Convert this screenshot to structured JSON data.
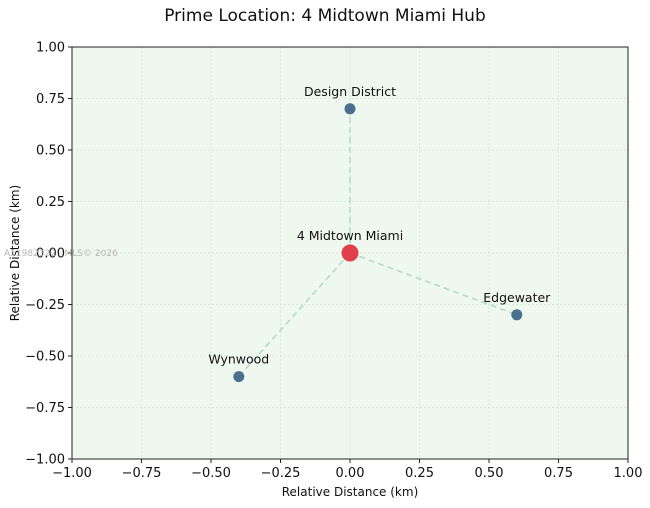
{
  "chart_data": {
    "type": "scatter",
    "title": "Prime Location: 4 Midtown Miami Hub",
    "xlabel": "Relative Distance (km)",
    "ylabel": "Relative Distance (km)",
    "xlim": [
      -1.0,
      1.0
    ],
    "ylim": [
      -1.0,
      1.0
    ],
    "xticks": [
      "−1.00",
      "−0.75",
      "−0.50",
      "−0.25",
      "0.00",
      "0.25",
      "0.50",
      "0.75",
      "1.00"
    ],
    "yticks": [
      "1.00",
      "0.75",
      "0.50",
      "0.25",
      "0.00",
      "−0.25",
      "−0.50",
      "−0.75",
      "−1.00"
    ],
    "grid": true,
    "hub": {
      "name": "4 Midtown Miami",
      "x": 0.0,
      "y": 0.0
    },
    "points": [
      {
        "name": "Design District",
        "x": 0.0,
        "y": 0.7
      },
      {
        "name": "Edgewater",
        "x": 0.6,
        "y": -0.3
      },
      {
        "name": "Wynwood",
        "x": -0.4,
        "y": -0.6
      }
    ],
    "colors": {
      "hub": "#e0404a",
      "point": "#4a7090",
      "connector": "#b0dcc8",
      "background": "#eff8ee",
      "grid": "#cfe3cf"
    },
    "watermark": "A11982322 · MLS© 2026"
  }
}
